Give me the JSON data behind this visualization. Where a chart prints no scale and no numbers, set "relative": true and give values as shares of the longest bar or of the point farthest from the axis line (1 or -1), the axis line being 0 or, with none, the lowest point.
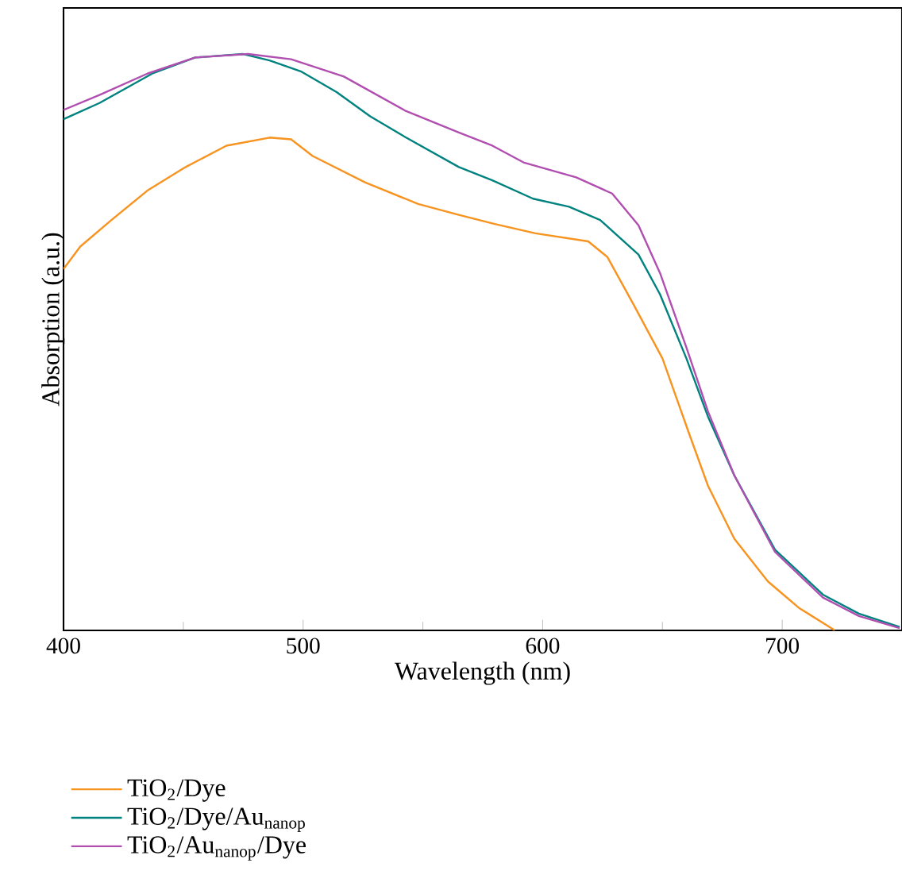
{
  "chart_data": {
    "type": "line",
    "relative": true,
    "xlabel": "Wavelength (nm)",
    "ylabel": "Absorption (a.u.)",
    "xlim": [
      400,
      750
    ],
    "xticks": [
      400,
      500,
      600,
      700
    ],
    "legend": "bottom",
    "line_style": "solid",
    "series": [
      {
        "name": "TiO$_{2}$/Dye",
        "color": "#f7931e",
        "x": [
          400,
          407,
          420,
          435,
          451,
          468,
          486,
          495,
          504,
          526,
          548,
          565,
          580,
          597,
          619,
          627,
          638,
          650,
          661,
          669,
          680,
          694,
          707,
          722
        ],
        "values": [
          0.627,
          0.666,
          0.712,
          0.763,
          0.804,
          0.841,
          0.855,
          0.852,
          0.823,
          0.777,
          0.74,
          0.721,
          0.705,
          0.689,
          0.675,
          0.648,
          0.565,
          0.472,
          0.343,
          0.251,
          0.159,
          0.085,
          0.039,
          0.0
        ]
      },
      {
        "name": "TiO$_{2}$/Dye/Au$_{nanop}$",
        "color": "#00827f",
        "x": [
          400,
          415,
          437,
          455,
          475,
          486,
          499,
          514,
          528,
          543,
          565,
          579,
          596,
          611,
          624,
          640,
          649,
          660,
          669,
          680,
          697,
          717,
          732,
          749
        ],
        "values": [
          0.887,
          0.915,
          0.966,
          0.994,
          1.0,
          0.989,
          0.97,
          0.934,
          0.892,
          0.855,
          0.804,
          0.781,
          0.749,
          0.735,
          0.712,
          0.652,
          0.583,
          0.472,
          0.371,
          0.269,
          0.14,
          0.062,
          0.029,
          0.006
        ]
      },
      {
        "name": "TiO$_{2}$/Au$_{nanop}$/Dye",
        "color": "#b04fb0",
        "x": [
          400,
          415,
          435,
          455,
          477,
          495,
          517,
          543,
          565,
          579,
          592,
          614,
          629,
          640,
          649,
          660,
          669,
          680,
          697,
          717,
          732,
          749
        ],
        "values": [
          0.903,
          0.929,
          0.966,
          0.994,
          1.0,
          0.991,
          0.961,
          0.901,
          0.864,
          0.841,
          0.812,
          0.786,
          0.758,
          0.703,
          0.62,
          0.491,
          0.38,
          0.269,
          0.136,
          0.057,
          0.025,
          0.004
        ]
      }
    ]
  }
}
